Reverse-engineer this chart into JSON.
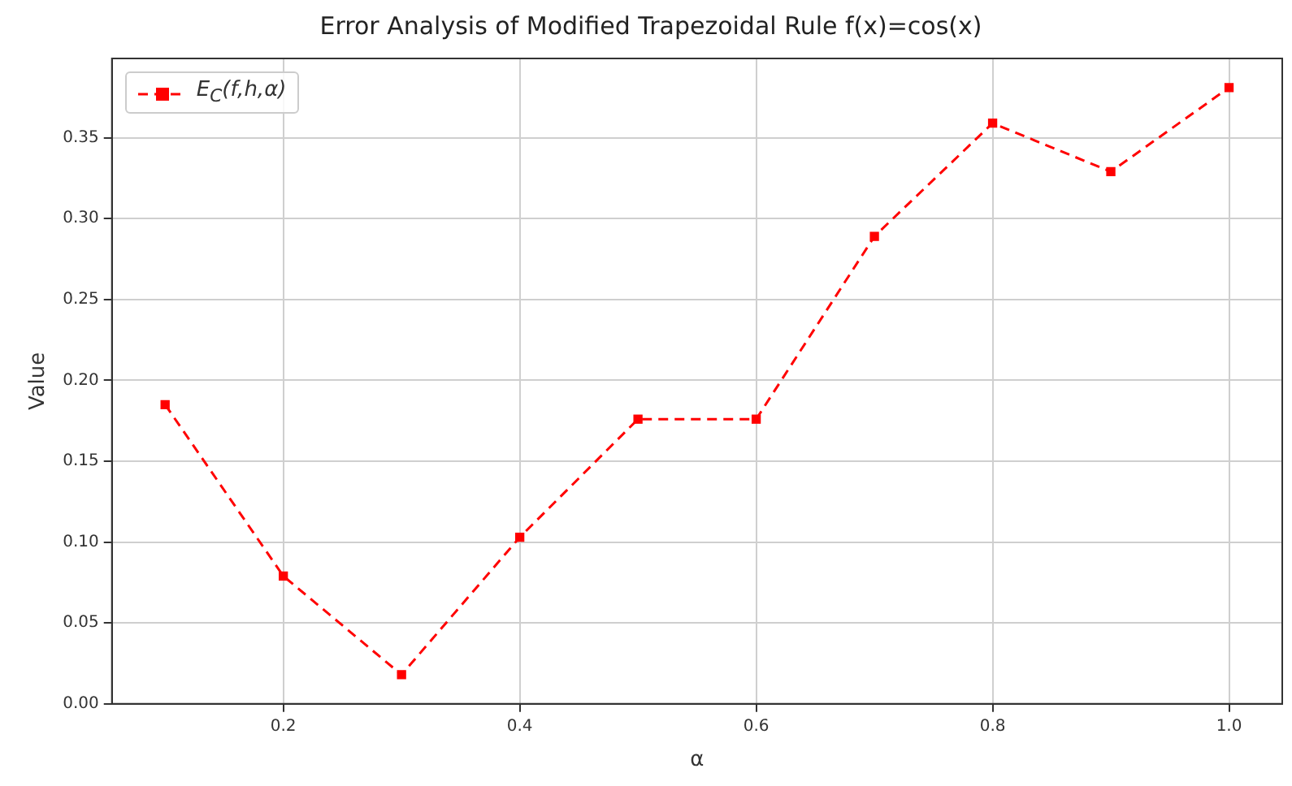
{
  "chart_data": {
    "type": "line",
    "title": "Error Analysis of Modified Trapezoidal Rule f(x)=cos(x)",
    "xlabel": "α",
    "ylabel": "Value",
    "x": [
      0.1,
      0.2,
      0.3,
      0.4,
      0.5,
      0.6,
      0.7,
      0.8,
      0.9,
      1.0
    ],
    "series": [
      {
        "name": "E$_{C}$(f,h,α)",
        "color": "#ff0000",
        "values": [
          0.185,
          0.079,
          0.018,
          0.103,
          0.176,
          0.176,
          0.289,
          0.359,
          0.329,
          0.381
        ]
      }
    ],
    "xlim": [
      0.055,
      1.045
    ],
    "xticks": [
      0.2,
      0.4,
      0.6,
      0.8,
      {
        "value": 1.0,
        "label": "1.0"
      }
    ],
    "ylim": [
      0,
      0.399
    ],
    "yticks": [
      {
        "value": 0,
        "label": "0.00"
      },
      {
        "value": 0.05,
        "label": "0.05"
      },
      {
        "value": 0.1,
        "label": "0.10"
      },
      {
        "value": 0.15,
        "label": "0.15"
      },
      {
        "value": 0.2,
        "label": "0.20"
      },
      {
        "value": 0.25,
        "label": "0.25"
      },
      {
        "value": 0.3,
        "label": "0.30"
      },
      {
        "value": 0.35,
        "label": "0.35"
      }
    ],
    "grid": true,
    "legend": "top left",
    "marker": "square",
    "line_style": "dashed"
  }
}
